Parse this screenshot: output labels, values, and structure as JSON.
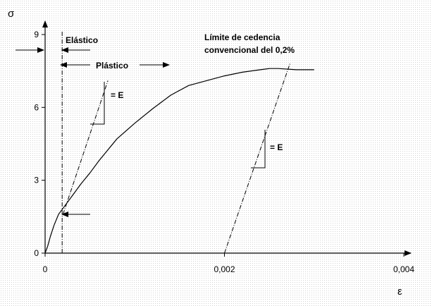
{
  "chart_data": {
    "type": "line",
    "xlabel": "ε",
    "ylabel": "σ",
    "xlim": [
      0,
      0.004
    ],
    "ylim": [
      0,
      9
    ],
    "x_ticks": [
      0,
      0.002,
      0.004
    ],
    "x_tick_labels": [
      "0",
      "0,002",
      "0,004"
    ],
    "y_ticks": [
      0,
      3,
      6,
      9
    ],
    "y_tick_labels": [
      "0",
      "3",
      "6",
      "9"
    ],
    "grid": false,
    "series": [
      {
        "points": [
          [
            0,
            0
          ],
          [
            3e-05,
            0.3
          ],
          [
            6e-05,
            0.7
          ],
          [
            0.0001,
            1.15
          ],
          [
            0.00015,
            1.6
          ],
          [
            0.0002,
            1.85
          ],
          [
            0.0003,
            2.35
          ],
          [
            0.0004,
            2.85
          ],
          [
            0.0005,
            3.3
          ],
          [
            0.0006,
            3.8
          ],
          [
            0.0008,
            4.7
          ],
          [
            0.001,
            5.35
          ],
          [
            0.0012,
            5.95
          ],
          [
            0.0014,
            6.5
          ],
          [
            0.0016,
            6.9
          ],
          [
            0.0018,
            7.1
          ],
          [
            0.002,
            7.3
          ],
          [
            0.0022,
            7.45
          ],
          [
            0.0024,
            7.55
          ],
          [
            0.0025,
            7.6
          ],
          [
            0.0026,
            7.6
          ],
          [
            0.0028,
            7.55
          ],
          [
            0.003,
            7.55
          ]
        ]
      }
    ],
    "modulus_line_origin": {
      "x": [
        0.0002,
        0.0007
      ],
      "y": [
        1.6,
        7.1
      ]
    },
    "offset_line_02": {
      "x": [
        0.002,
        0.00273
      ],
      "y": [
        0,
        7.8
      ]
    },
    "elastic_limit": {
      "x": 0.00019,
      "y": 1.6
    },
    "annotations": {
      "elastic": "Elástico",
      "plastic": "Plástico",
      "modulus_label_1": "= E",
      "modulus_label_2": "= E",
      "yield_line1": "Límite de cedencia",
      "yield_line2": "convencional del  0,2%"
    }
  }
}
